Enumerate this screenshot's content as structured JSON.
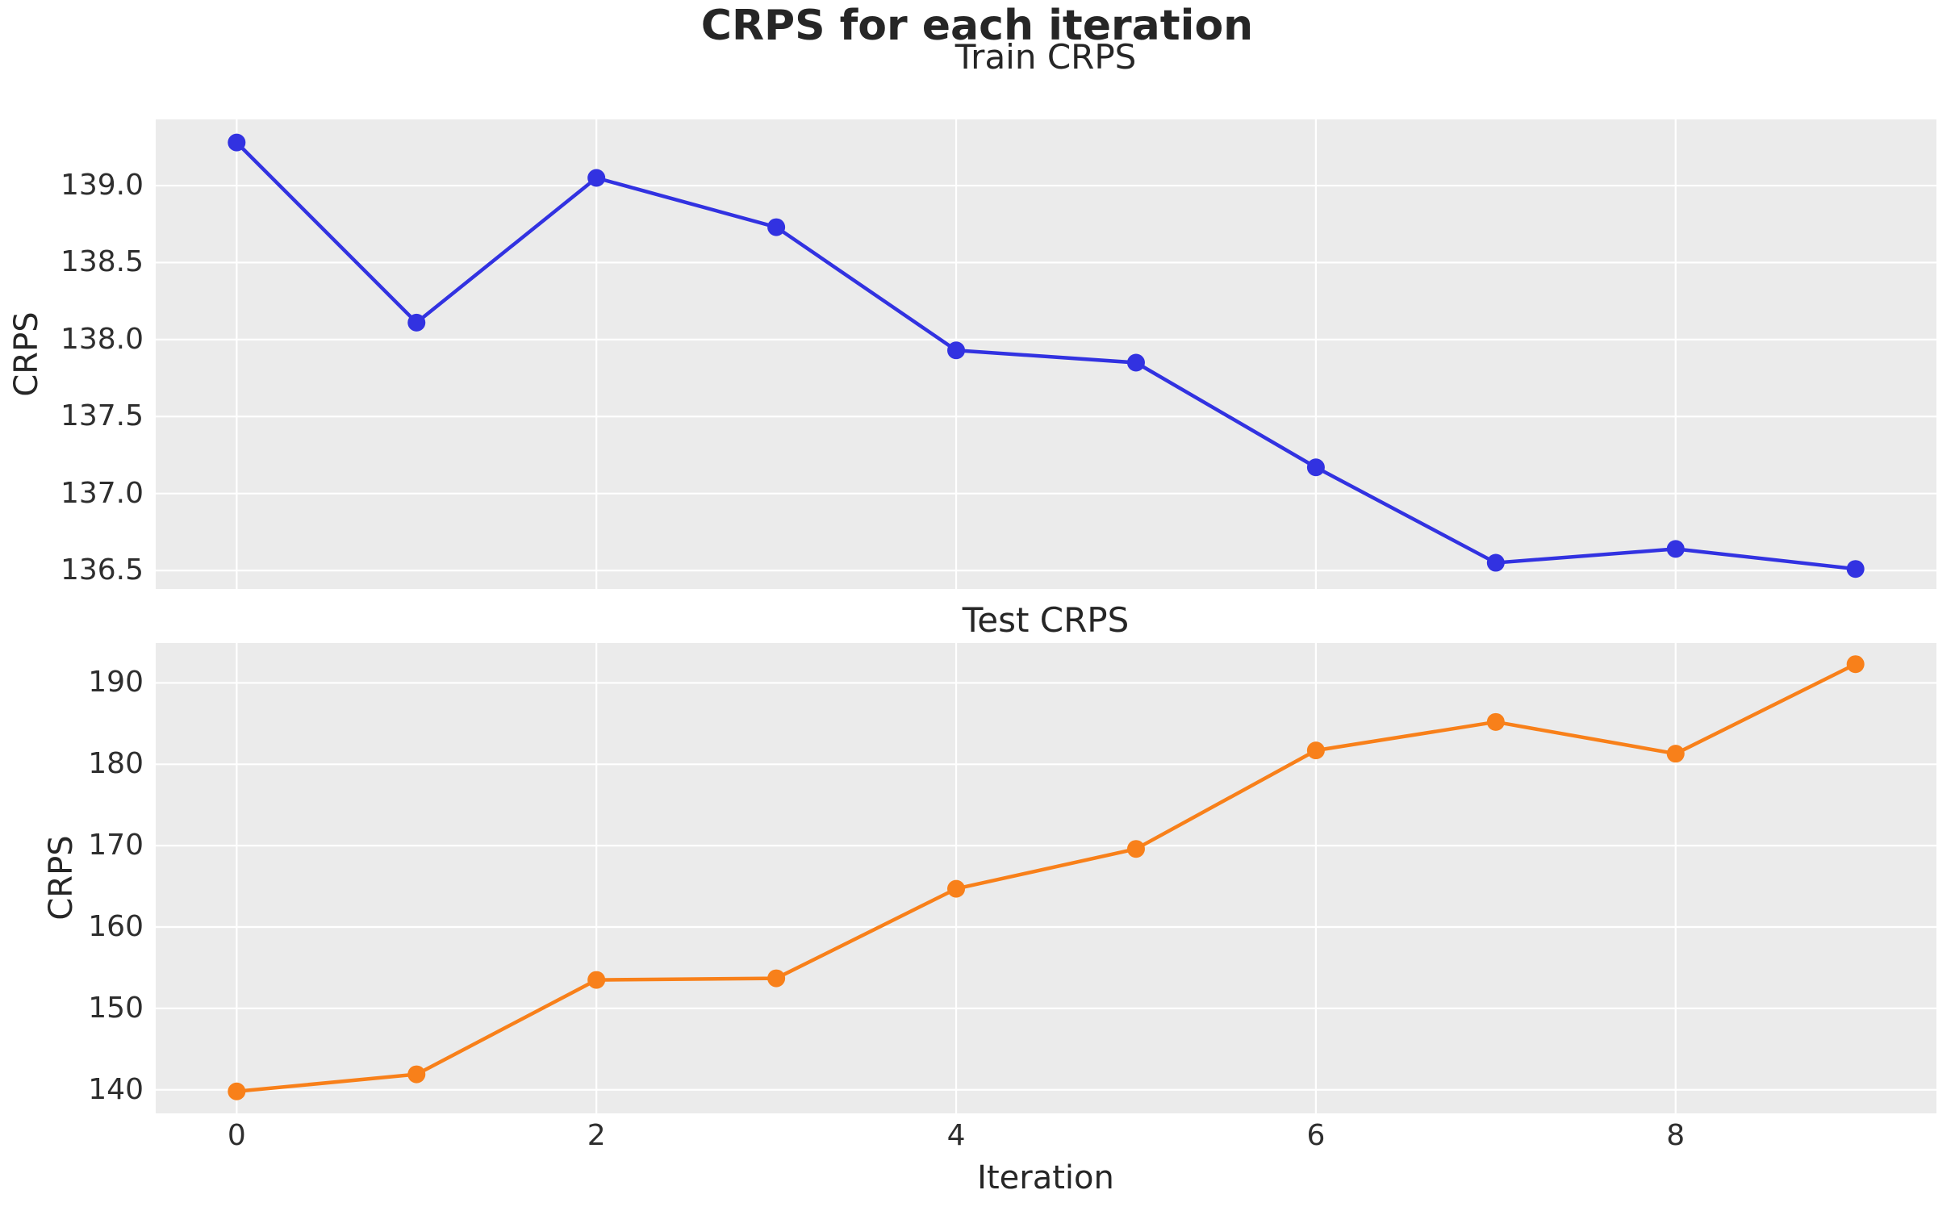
{
  "figure": {
    "title": "CRPS for each iteration",
    "xlabel": "Iteration"
  },
  "colors": {
    "figure_bg": "#ffffff",
    "plot_bg": "#ebebeb",
    "grid": "#ffffff",
    "train_line": "#3232e1",
    "test_line": "#f8801a",
    "text": "#262626",
    "tick_text": "#2e2e2e"
  },
  "chart_data": [
    {
      "type": "line",
      "title": "Train CRPS",
      "ylabel": "CRPS",
      "xlabel": "",
      "grid": true,
      "legend": "none",
      "x": [
        0,
        1,
        2,
        3,
        4,
        5,
        6,
        7,
        8,
        9
      ],
      "series": [
        {
          "name": "Train CRPS",
          "color": "#3232e1",
          "marker": "circle",
          "values": [
            139.28,
            138.11,
            139.05,
            138.73,
            137.93,
            137.85,
            137.17,
            136.55,
            136.64,
            136.51
          ]
        }
      ],
      "xlim": [
        -0.45,
        9.45
      ],
      "ylim": [
        136.38,
        139.43
      ],
      "xticks": [
        0,
        2,
        4,
        6,
        8
      ],
      "xtick_labels": [],
      "yticks": [
        139.0,
        138.5,
        138.0,
        137.5,
        137.0,
        136.5
      ],
      "ytick_labels": [
        "139.0",
        "138.5",
        "138.0",
        "137.5",
        "137.0",
        "136.5"
      ]
    },
    {
      "type": "line",
      "title": "Test CRPS",
      "ylabel": "CRPS",
      "xlabel": "Iteration",
      "grid": true,
      "legend": "none",
      "x": [
        0,
        1,
        2,
        3,
        4,
        5,
        6,
        7,
        8,
        9
      ],
      "series": [
        {
          "name": "Test CRPS",
          "color": "#f8801a",
          "marker": "circle",
          "values": [
            139.8,
            141.9,
            153.5,
            153.7,
            164.7,
            169.6,
            181.7,
            185.2,
            181.3,
            192.3
          ]
        }
      ],
      "xlim": [
        -0.45,
        9.45
      ],
      "ylim": [
        137.1,
        194.9
      ],
      "xticks": [
        0,
        2,
        4,
        6,
        8
      ],
      "xtick_labels": [
        "0",
        "2",
        "4",
        "6",
        "8"
      ],
      "yticks": [
        190,
        180,
        170,
        160,
        150,
        140
      ],
      "ytick_labels": [
        "190",
        "180",
        "170",
        "160",
        "150",
        "140"
      ]
    }
  ]
}
